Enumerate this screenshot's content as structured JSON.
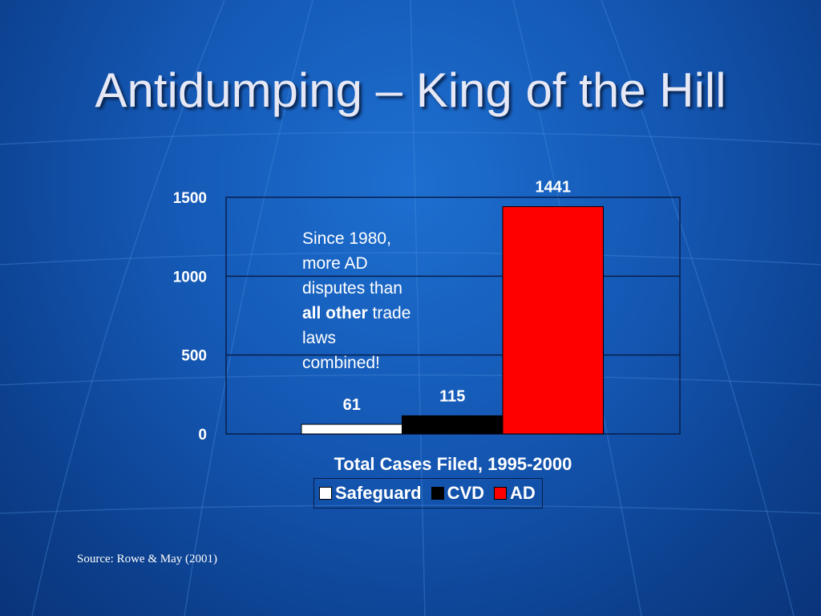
{
  "slide": {
    "title": "Antidumping – King of the Hill",
    "source": "Source: Rowe & May (2001)",
    "annotation": {
      "line1": "Since 1980,",
      "line2": "more AD",
      "line3": "disputes than",
      "bold": "all other",
      "after_bold": " trade",
      "line5": "laws",
      "line6": "combined!"
    }
  },
  "colors": {
    "safeguard": "#ffffff",
    "cvd": "#000000",
    "ad": "#ff0000",
    "gridline": "#0a1e4a"
  },
  "chart_data": {
    "type": "bar",
    "title": "",
    "xlabel": "Total Cases Filed, 1995-2000",
    "ylabel": "",
    "ylim": [
      0,
      1500
    ],
    "yticks": [
      "0",
      "500",
      "1000",
      "1500"
    ],
    "grid": true,
    "legend_position": "bottom",
    "series": [
      {
        "name": "Safeguard",
        "values": [
          61
        ],
        "label": "61"
      },
      {
        "name": "CVD",
        "values": [
          115
        ],
        "label": "115"
      },
      {
        "name": "AD",
        "values": [
          1441
        ],
        "label": "1441"
      }
    ]
  }
}
